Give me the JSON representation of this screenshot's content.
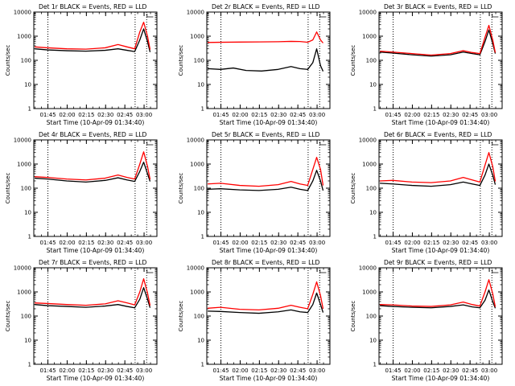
{
  "chart_data": [
    {
      "type": "line",
      "title": "Det 1r BLACK = Events, RED = LLD",
      "xlabel": "Start Time (10-Apr-09 01:34:40)",
      "ylabel": "Counts/sec",
      "yscale": "log",
      "ylim": [
        1,
        10000
      ],
      "xticks": [
        "01:45",
        "02:00",
        "02:15",
        "02:30",
        "02:45",
        "03:00"
      ],
      "yticks": [
        "1",
        "10",
        "100",
        "1000",
        "10000"
      ],
      "vlines": [
        "01:45",
        "02:53",
        "03:02"
      ],
      "grid": false,
      "series": [
        {
          "color": "#000000",
          "x": [
            0,
            10,
            25,
            40,
            55,
            65,
            72,
            78,
            82,
            85,
            88,
            90
          ],
          "y": [
            300,
            270,
            250,
            240,
            260,
            300,
            260,
            230,
            700,
            2000,
            600,
            220
          ]
        },
        {
          "color": "#ff0000",
          "x": [
            0,
            10,
            25,
            40,
            55,
            65,
            72,
            78,
            82,
            85,
            88,
            90
          ],
          "y": [
            360,
            330,
            300,
            290,
            330,
            450,
            360,
            300,
            1500,
            3800,
            1000,
            280
          ]
        }
      ]
    },
    {
      "type": "line",
      "title": "Det 2r BLACK = Events, RED = LLD",
      "xlabel": "Start Time (10-Apr-09 01:34:40)",
      "ylabel": "Counts/sec",
      "yscale": "log",
      "ylim": [
        1,
        10000
      ],
      "xticks": [
        "01:45",
        "02:00",
        "02:15",
        "02:30",
        "02:45",
        "03:00"
      ],
      "yticks": [
        "1",
        "10",
        "100",
        "1000",
        "10000"
      ],
      "vlines": [
        "01:45",
        "02:53",
        "03:02"
      ],
      "grid": false,
      "series": [
        {
          "color": "#000000",
          "x": [
            0,
            10,
            20,
            30,
            42,
            55,
            65,
            72,
            78,
            82,
            85,
            88,
            90
          ],
          "y": [
            45,
            42,
            48,
            38,
            36,
            42,
            55,
            45,
            42,
            80,
            300,
            60,
            35
          ]
        },
        {
          "color": "#ff0000",
          "x": [
            0,
            10,
            25,
            40,
            55,
            65,
            72,
            78,
            82,
            85,
            88,
            90
          ],
          "y": [
            550,
            560,
            570,
            580,
            590,
            610,
            600,
            560,
            700,
            1500,
            700,
            520
          ]
        }
      ]
    },
    {
      "type": "line",
      "title": "Det 3r BLACK = Events, RED = LLD",
      "xlabel": "Start Time (10-Apr-09 01:34:40)",
      "ylabel": "Counts/sec",
      "yscale": "log",
      "ylim": [
        1,
        10000
      ],
      "xticks": [
        "01:45",
        "02:00",
        "02:15",
        "02:30",
        "02:45",
        "03:00"
      ],
      "yticks": [
        "1",
        "10",
        "100",
        "1000",
        "10000"
      ],
      "vlines": [
        "01:45",
        "02:53",
        "03:02"
      ],
      "grid": false,
      "series": [
        {
          "color": "#000000",
          "x": [
            0,
            10,
            25,
            40,
            55,
            65,
            72,
            78,
            82,
            85,
            88,
            90
          ],
          "y": [
            220,
            200,
            170,
            150,
            170,
            220,
            190,
            170,
            600,
            1800,
            500,
            190
          ]
        },
        {
          "color": "#ff0000",
          "x": [
            0,
            10,
            25,
            40,
            55,
            65,
            72,
            78,
            82,
            85,
            88,
            90
          ],
          "y": [
            240,
            220,
            190,
            165,
            190,
            250,
            210,
            190,
            900,
            2800,
            700,
            210
          ]
        }
      ]
    },
    {
      "type": "line",
      "title": "Det 4r BLACK = Events, RED = LLD",
      "xlabel": "Start Time (10-Apr-09 01:34:40)",
      "ylabel": "Counts/sec",
      "yscale": "log",
      "ylim": [
        1,
        10000
      ],
      "xticks": [
        "01:45",
        "02:00",
        "02:15",
        "02:30",
        "02:45",
        "03:00"
      ],
      "yticks": [
        "1",
        "10",
        "100",
        "1000",
        "10000"
      ],
      "vlines": [
        "01:45",
        "02:53",
        "03:02"
      ],
      "grid": false,
      "series": [
        {
          "color": "#000000",
          "x": [
            0,
            10,
            25,
            40,
            55,
            65,
            72,
            78,
            82,
            85,
            88,
            90
          ],
          "y": [
            260,
            240,
            200,
            180,
            210,
            270,
            220,
            190,
            500,
            1200,
            400,
            190
          ]
        },
        {
          "color": "#ff0000",
          "x": [
            0,
            10,
            25,
            40,
            55,
            65,
            72,
            78,
            82,
            85,
            88,
            90
          ],
          "y": [
            300,
            280,
            240,
            220,
            260,
            350,
            280,
            240,
            1000,
            3200,
            800,
            230
          ]
        }
      ]
    },
    {
      "type": "line",
      "title": "Det 5r BLACK = Events, RED = LLD",
      "xlabel": "Start Time (10-Apr-09 01:34:40)",
      "ylabel": "Counts/sec",
      "yscale": "log",
      "ylim": [
        1,
        10000
      ],
      "xticks": [
        "01:45",
        "02:00",
        "02:15",
        "02:30",
        "02:45",
        "03:00"
      ],
      "yticks": [
        "1",
        "10",
        "100",
        "1000",
        "10000"
      ],
      "vlines": [
        "01:45",
        "02:53",
        "03:02"
      ],
      "grid": false,
      "series": [
        {
          "color": "#000000",
          "x": [
            0,
            10,
            25,
            40,
            55,
            65,
            72,
            78,
            82,
            85,
            88,
            90
          ],
          "y": [
            90,
            95,
            85,
            80,
            90,
            110,
            90,
            80,
            200,
            550,
            200,
            80
          ]
        },
        {
          "color": "#ff0000",
          "x": [
            0,
            10,
            25,
            40,
            55,
            65,
            72,
            78,
            82,
            85,
            88,
            90
          ],
          "y": [
            150,
            160,
            130,
            120,
            140,
            190,
            150,
            130,
            600,
            1900,
            600,
            130
          ]
        }
      ]
    },
    {
      "type": "line",
      "title": "Det 6r BLACK = Events, RED = LLD",
      "xlabel": "Start Time (10-Apr-09 01:34:40)",
      "ylabel": "Counts/sec",
      "yscale": "log",
      "ylim": [
        1,
        10000
      ],
      "xticks": [
        "01:45",
        "02:00",
        "02:15",
        "02:30",
        "02:45",
        "03:00"
      ],
      "yticks": [
        "1",
        "10",
        "100",
        "1000",
        "10000"
      ],
      "vlines": [
        "01:45",
        "02:53",
        "03:02"
      ],
      "grid": false,
      "series": [
        {
          "color": "#000000",
          "x": [
            0,
            10,
            25,
            40,
            55,
            65,
            72,
            78,
            82,
            85,
            88,
            90
          ],
          "y": [
            160,
            150,
            130,
            120,
            140,
            180,
            150,
            130,
            350,
            1000,
            350,
            140
          ]
        },
        {
          "color": "#ff0000",
          "x": [
            0,
            10,
            25,
            40,
            55,
            65,
            72,
            78,
            82,
            85,
            88,
            90
          ],
          "y": [
            200,
            210,
            180,
            170,
            200,
            280,
            220,
            180,
            900,
            3000,
            800,
            190
          ]
        }
      ]
    },
    {
      "type": "line",
      "title": "Det 7r BLACK = Events, RED = LLD",
      "xlabel": "Start Time (10-Apr-09 01:34:40)",
      "ylabel": "Counts/sec",
      "yscale": "log",
      "ylim": [
        1,
        10000
      ],
      "xticks": [
        "01:45",
        "02:00",
        "02:15",
        "02:30",
        "02:45",
        "03:00"
      ],
      "yticks": [
        "1",
        "10",
        "100",
        "1000",
        "10000"
      ],
      "vlines": [
        "01:45",
        "02:53",
        "03:02"
      ],
      "grid": false,
      "series": [
        {
          "color": "#000000",
          "x": [
            0,
            10,
            25,
            40,
            55,
            65,
            72,
            78,
            82,
            85,
            88,
            90
          ],
          "y": [
            300,
            270,
            250,
            230,
            260,
            300,
            250,
            220,
            500,
            1500,
            500,
            220
          ]
        },
        {
          "color": "#ff0000",
          "x": [
            0,
            10,
            25,
            40,
            55,
            65,
            72,
            78,
            82,
            85,
            88,
            90
          ],
          "y": [
            350,
            330,
            300,
            280,
            320,
            430,
            350,
            290,
            1000,
            3500,
            900,
            270
          ]
        }
      ]
    },
    {
      "type": "line",
      "title": "Det 8r BLACK = Events, RED = LLD",
      "xlabel": "Start Time (10-Apr-09 01:34:40)",
      "ylabel": "Counts/sec",
      "yscale": "log",
      "ylim": [
        1,
        10000
      ],
      "xticks": [
        "01:45",
        "02:00",
        "02:15",
        "02:30",
        "02:45",
        "03:00"
      ],
      "yticks": [
        "1",
        "10",
        "100",
        "1000",
        "10000"
      ],
      "vlines": [
        "01:45",
        "02:53",
        "03:02"
      ],
      "grid": false,
      "series": [
        {
          "color": "#000000",
          "x": [
            0,
            10,
            25,
            40,
            55,
            65,
            72,
            78,
            82,
            85,
            88,
            90
          ],
          "y": [
            160,
            155,
            140,
            130,
            150,
            180,
            150,
            140,
            300,
            900,
            300,
            140
          ]
        },
        {
          "color": "#ff0000",
          "x": [
            0,
            10,
            25,
            40,
            55,
            65,
            72,
            78,
            82,
            85,
            88,
            90
          ],
          "y": [
            210,
            230,
            190,
            180,
            210,
            280,
            230,
            200,
            800,
            2600,
            700,
            200
          ]
        }
      ]
    },
    {
      "type": "line",
      "title": "Det 9r BLACK = Events, RED = LLD",
      "xlabel": "Start Time (10-Apr-09 01:34:40)",
      "ylabel": "Counts/sec",
      "yscale": "log",
      "ylim": [
        1,
        10000
      ],
      "xticks": [
        "01:45",
        "02:00",
        "02:15",
        "02:30",
        "02:45",
        "03:00"
      ],
      "yticks": [
        "1",
        "10",
        "100",
        "1000",
        "10000"
      ],
      "vlines": [
        "01:45",
        "02:53",
        "03:02"
      ],
      "grid": false,
      "series": [
        {
          "color": "#000000",
          "x": [
            0,
            10,
            25,
            40,
            55,
            65,
            72,
            78,
            82,
            85,
            88,
            90
          ],
          "y": [
            270,
            250,
            230,
            220,
            250,
            290,
            240,
            220,
            450,
            1200,
            400,
            210
          ]
        },
        {
          "color": "#ff0000",
          "x": [
            0,
            10,
            25,
            40,
            55,
            65,
            72,
            78,
            82,
            85,
            88,
            90
          ],
          "y": [
            300,
            290,
            260,
            250,
            290,
            380,
            300,
            260,
            1000,
            3200,
            850,
            240
          ]
        }
      ]
    }
  ]
}
